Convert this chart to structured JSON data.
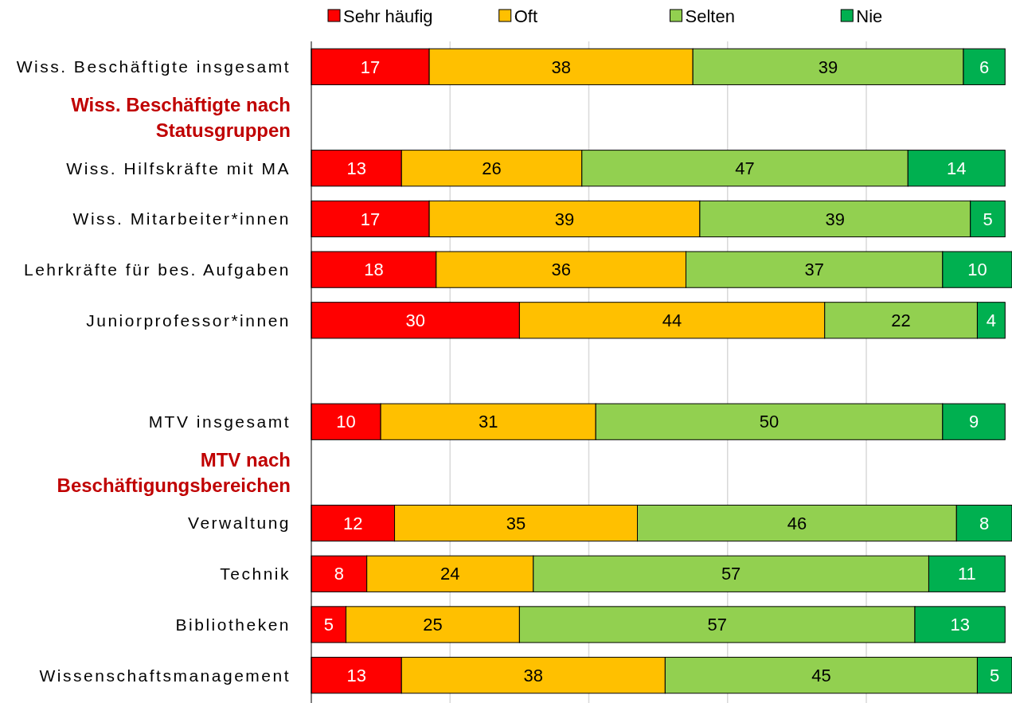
{
  "chart_data": {
    "type": "bar",
    "orientation": "horizontal",
    "stacked": true,
    "categories": [
      "Wiss. Beschäftigte insgesamt",
      "Wiss. Beschäftigte nach Statusgruppen",
      "Wiss. Hilfskräfte mit MA",
      "Wiss. Mitarbeiter*innen",
      "Lehrkräfte für bes. Aufgaben",
      "Juniorprofessor*innen",
      null,
      "MTV insgesamt",
      "MTV nach Beschäftigungsbereichen",
      "Verwaltung",
      "Technik",
      "Bibliotheken",
      "Wissenschaftsmanagement"
    ],
    "series": [
      {
        "name": "Sehr häufig",
        "color": "#ff0000",
        "values": [
          17,
          null,
          13,
          17,
          18,
          30,
          null,
          10,
          null,
          12,
          8,
          5,
          13
        ]
      },
      {
        "name": "Oft",
        "color": "#ffc000",
        "values": [
          38,
          null,
          26,
          39,
          36,
          44,
          null,
          31,
          null,
          35,
          24,
          25,
          38
        ]
      },
      {
        "name": "Selten",
        "color": "#92d050",
        "values": [
          39,
          null,
          47,
          39,
          37,
          22,
          null,
          50,
          null,
          46,
          57,
          57,
          45
        ]
      },
      {
        "name": "Nie",
        "color": "#00b050",
        "values": [
          6,
          null,
          14,
          5,
          10,
          4,
          null,
          9,
          null,
          8,
          11,
          13,
          5
        ]
      }
    ],
    "xlim": [
      0,
      101
    ],
    "xticks": [
      {
        "value": 20,
        "label": null
      },
      {
        "value": 40,
        "label": null
      },
      {
        "value": 60,
        "label": null
      },
      {
        "value": 80,
        "label": null
      }
    ],
    "grid": "x",
    "tick_labels": "y",
    "data_labels": true,
    "legend": "top"
  }
}
